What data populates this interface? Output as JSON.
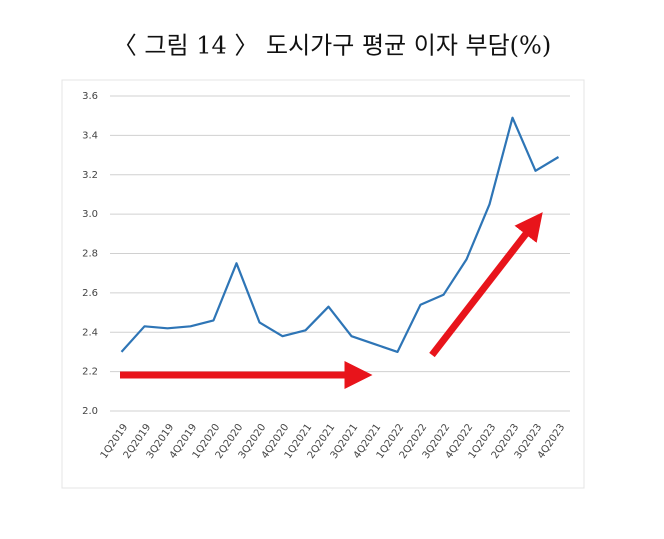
{
  "chart_data": {
    "type": "line",
    "title": "〈 그림 14 〉 도시가구 평균 이자 부담(%)",
    "categories": [
      "1Q2019",
      "2Q2019",
      "3Q2019",
      "4Q2019",
      "1Q2020",
      "2Q2020",
      "3Q2020",
      "4Q2020",
      "1Q2021",
      "2Q2021",
      "3Q2021",
      "4Q2021",
      "1Q2022",
      "2Q2022",
      "3Q2022",
      "4Q2022",
      "1Q2023",
      "2Q2023",
      "3Q2023",
      "4Q2023"
    ],
    "values": [
      2.3,
      2.43,
      2.42,
      2.43,
      2.46,
      2.75,
      2.45,
      2.38,
      2.41,
      2.53,
      2.38,
      2.34,
      2.3,
      2.54,
      2.59,
      2.77,
      3.05,
      3.49,
      3.22,
      3.29
    ],
    "color": "#2e75b6",
    "ylim": [
      2.0,
      3.6
    ],
    "yticks": [
      {
        "value": 2.0,
        "label": "2.0"
      },
      {
        "value": 2.2,
        "label": "2.2"
      },
      {
        "value": 2.4,
        "label": "2.4"
      },
      {
        "value": 2.6,
        "label": "2.6"
      },
      {
        "value": 2.8,
        "label": "2.8"
      },
      {
        "value": 3.0,
        "label": "3.0"
      },
      {
        "value": 3.2,
        "label": "3.2"
      },
      {
        "value": 3.4,
        "label": "3.4"
      },
      {
        "value": 3.6,
        "label": "3.6"
      }
    ],
    "grid": true
  }
}
